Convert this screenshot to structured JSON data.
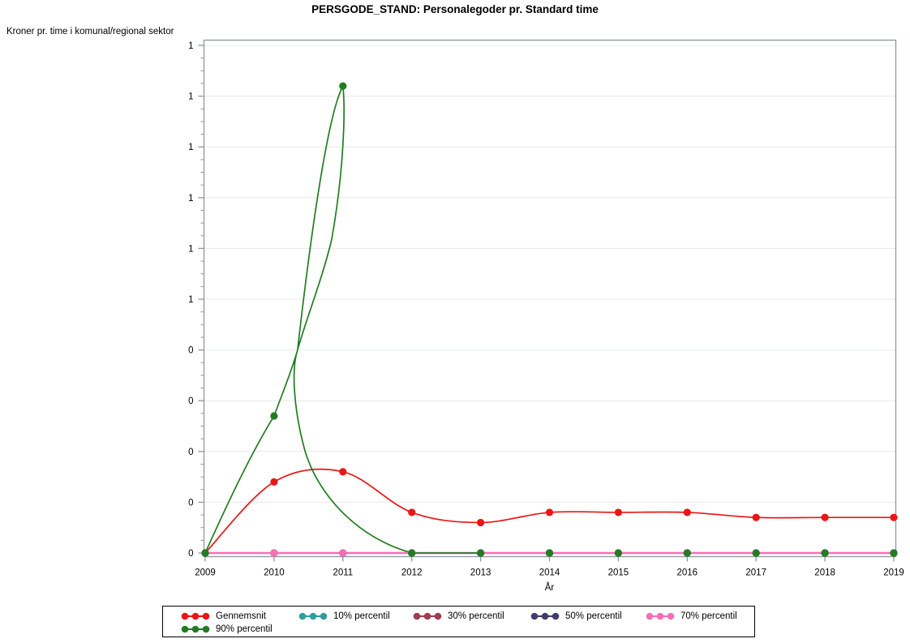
{
  "title": "PERSGODE_STAND: Personalegoder pr. Standard time",
  "y_axis_caption": "Kroner pr. time i komunal/regional sektor",
  "x_axis_label": "År",
  "styling": {
    "frame_color": "#8e979b",
    "grid_color": "#e7e9e9",
    "tick_label_color": "#000000",
    "legend_border_color": "#000000",
    "background": "#ffffff"
  },
  "chart_data": {
    "type": "line",
    "title": "PERSGODE_STAND: Personalegoder pr. Standard time",
    "xlabel": "År",
    "ylabel": "Kroner pr. time i komunal/regional sektor",
    "x": [
      2009,
      2010,
      2011,
      2012,
      2013,
      2014,
      2015,
      2016,
      2017,
      2018,
      2019
    ],
    "series": [
      {
        "name": "Gennemsnit",
        "color": "#ec1515",
        "marker": "circle",
        "values": [
          0,
          0.14,
          0.16,
          0.08,
          0.06,
          0.08,
          0.08,
          0.08,
          0.07,
          0.07,
          0.07
        ]
      },
      {
        "name": "10% percentil",
        "color": "#2d9d9d",
        "marker": "circle",
        "values": [
          0,
          0,
          0,
          0,
          0,
          0,
          0,
          0,
          0,
          0,
          0
        ]
      },
      {
        "name": "30% percentil",
        "color": "#a23c50",
        "marker": "circle",
        "values": [
          0,
          0,
          0,
          0,
          0,
          0,
          0,
          0,
          0,
          0,
          0
        ]
      },
      {
        "name": "50% percentil",
        "color": "#3f3e6d",
        "marker": "circle",
        "values": [
          0,
          0,
          0,
          0,
          0,
          0,
          0,
          0,
          0,
          0,
          0
        ]
      },
      {
        "name": "70% percentil",
        "color": "#f96eb6",
        "marker": "circle",
        "values": [
          0,
          0,
          0,
          0,
          0,
          0,
          0,
          0,
          0,
          0,
          0
        ]
      },
      {
        "name": "90% percentil",
        "color": "#217d21",
        "marker": "circle",
        "values": [
          0,
          0.27,
          0.92,
          0,
          0,
          0,
          0,
          0,
          0,
          0,
          0
        ]
      }
    ],
    "ylim": [
      0,
      1
    ],
    "ytick_step": 0.1,
    "ytick_labels_top_to_bottom": [
      "1",
      "1",
      "1",
      "1",
      "1",
      "1",
      "0",
      "0",
      "0",
      "0",
      "0"
    ],
    "grid": true,
    "legend_position": "bottom",
    "interpolation": "smooth-spline"
  }
}
